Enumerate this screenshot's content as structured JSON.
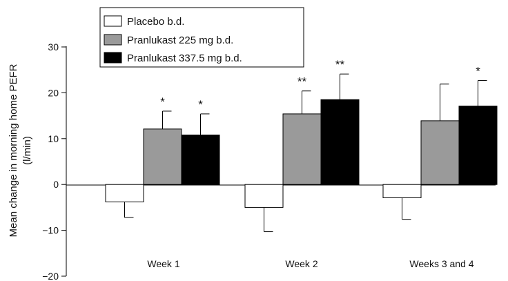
{
  "chart_data": {
    "type": "bar",
    "title": "",
    "xlabel": "",
    "ylabel": "Mean change in morning home PEFR (l/min)",
    "ylabel_line1": "Mean change in morning home PEFR",
    "ylabel_line2": "(l/min)",
    "ylim": [
      -20,
      30
    ],
    "yticks": [
      30,
      20,
      10,
      0,
      -10,
      -20
    ],
    "ytick_labels": [
      "30",
      "20",
      "10",
      "0",
      "−10",
      "−20"
    ],
    "categories": [
      "Week 1",
      "Week 2",
      "Weeks 3 and 4"
    ],
    "legend_position": "top-left",
    "grid": false,
    "error_bars": "upper standard error shown",
    "series": [
      {
        "name": "Placebo b.d.",
        "color": "#ffffff",
        "values": [
          -3.8,
          -5.0,
          -2.9
        ],
        "errors": [
          3.4,
          5.3,
          4.7
        ],
        "significance": [
          "",
          "",
          ""
        ]
      },
      {
        "name": "Pranlukast 225 mg b.d.",
        "color": "#9a9a9a",
        "values": [
          12.1,
          15.4,
          13.9
        ],
        "errors": [
          3.9,
          5.0,
          8.0
        ],
        "significance": [
          "*",
          "**",
          ""
        ]
      },
      {
        "name": "Pranlukast 337.5 mg b.d.",
        "color": "#000000",
        "values": [
          10.8,
          18.5,
          17.1
        ],
        "errors": [
          4.6,
          5.6,
          5.6
        ],
        "significance": [
          "*",
          "**",
          "*"
        ]
      }
    ]
  }
}
